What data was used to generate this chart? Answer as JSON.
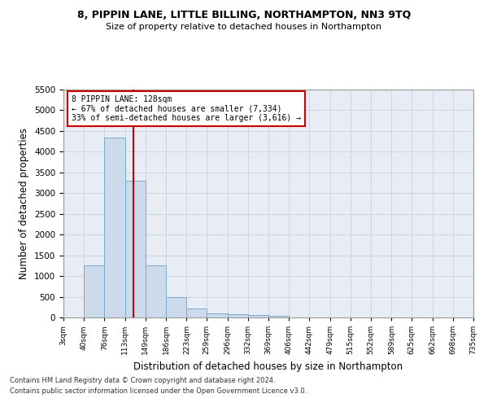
{
  "title1": "8, PIPPIN LANE, LITTLE BILLING, NORTHAMPTON, NN3 9TQ",
  "title2": "Size of property relative to detached houses in Northampton",
  "xlabel": "Distribution of detached houses by size in Northampton",
  "ylabel": "Number of detached properties",
  "footer1": "Contains HM Land Registry data © Crown copyright and database right 2024.",
  "footer2": "Contains public sector information licensed under the Open Government Licence v3.0.",
  "bin_edges": [
    3,
    40,
    76,
    113,
    149,
    186,
    223,
    259,
    296,
    332,
    369,
    406,
    442,
    479,
    515,
    552,
    589,
    625,
    662,
    698,
    735
  ],
  "bar_heights": [
    0,
    1250,
    4350,
    3300,
    1260,
    490,
    220,
    90,
    80,
    55,
    45,
    0,
    0,
    0,
    0,
    0,
    0,
    0,
    0,
    0
  ],
  "bar_color": "#ccdaeb",
  "bar_edge_color": "#7aaacb",
  "grid_color": "#c8d0df",
  "bg_color": "#e8edf5",
  "vline_x": 128,
  "vline_color": "#cc0000",
  "annotation_text": "8 PIPPIN LANE: 128sqm\n← 67% of detached houses are smaller (7,334)\n33% of semi-detached houses are larger (3,616) →",
  "annotation_box_color": "#ffffff",
  "annotation_border_color": "#cc0000",
  "ylim": [
    0,
    5500
  ],
  "yticks": [
    0,
    500,
    1000,
    1500,
    2000,
    2500,
    3000,
    3500,
    4000,
    4500,
    5000,
    5500
  ]
}
